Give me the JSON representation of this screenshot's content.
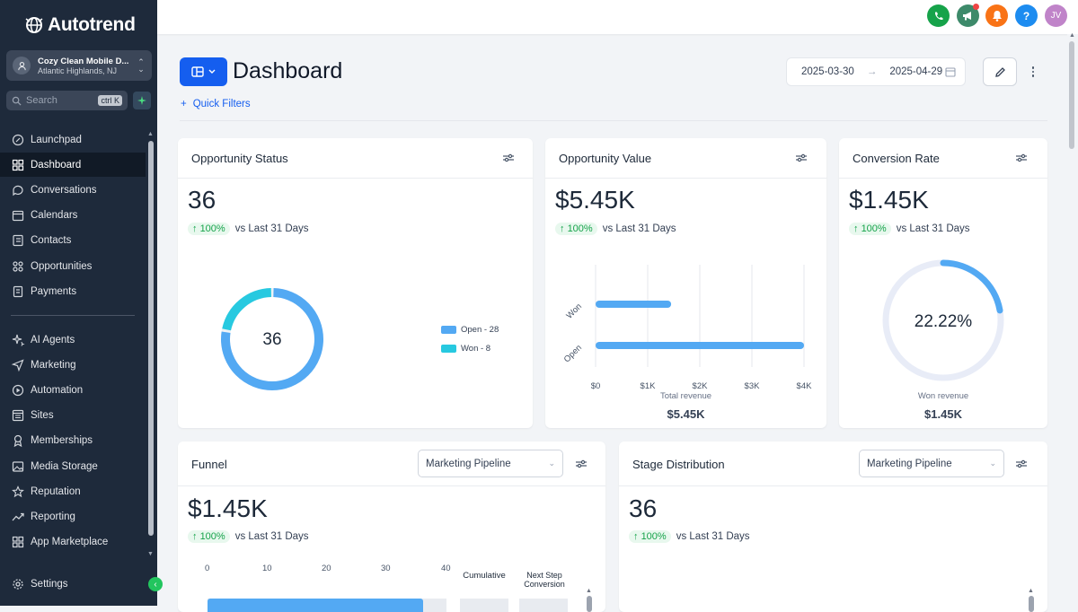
{
  "brand": {
    "name": "Autotrend"
  },
  "account": {
    "name": "Cozy Clean Mobile D...",
    "location": "Atlantic Highlands, NJ"
  },
  "search": {
    "placeholder": "Search",
    "shortcut": "ctrl K"
  },
  "nav": {
    "top": [
      {
        "label": "Launchpad",
        "icon": "rocket-icon"
      },
      {
        "label": "Dashboard",
        "icon": "grid-icon",
        "active": true
      },
      {
        "label": "Conversations",
        "icon": "chat-icon"
      },
      {
        "label": "Calendars",
        "icon": "calendar-icon"
      },
      {
        "label": "Contacts",
        "icon": "contacts-icon"
      },
      {
        "label": "Opportunities",
        "icon": "opportunities-icon"
      },
      {
        "label": "Payments",
        "icon": "payments-icon"
      }
    ],
    "bottom": [
      {
        "label": "AI Agents",
        "icon": "sparkles-icon"
      },
      {
        "label": "Marketing",
        "icon": "send-icon"
      },
      {
        "label": "Automation",
        "icon": "automation-icon"
      },
      {
        "label": "Sites",
        "icon": "sites-icon"
      },
      {
        "label": "Memberships",
        "icon": "membership-icon"
      },
      {
        "label": "Media Storage",
        "icon": "image-icon"
      },
      {
        "label": "Reputation",
        "icon": "star-icon"
      },
      {
        "label": "Reporting",
        "icon": "trend-icon"
      },
      {
        "label": "App Marketplace",
        "icon": "apps-icon"
      }
    ],
    "settings": "Settings"
  },
  "topbar": {
    "icons": [
      {
        "name": "phone-icon",
        "color": "#16a34a"
      },
      {
        "name": "megaphone-icon",
        "color": "#3d8a6a"
      },
      {
        "name": "bell-icon",
        "color": "#f97316"
      },
      {
        "name": "help-icon",
        "color": "#1d8cf0",
        "glyph": "?"
      },
      {
        "name": "avatar",
        "color": "#c084c9",
        "glyph": "JV"
      }
    ]
  },
  "header": {
    "title": "Dashboard",
    "date_from": "2025-03-30",
    "date_to": "2025-04-29",
    "quick_filters": "Quick Filters"
  },
  "cards": {
    "status": {
      "title": "Opportunity Status",
      "value": "36",
      "change": "100%",
      "period": "vs Last 31 Days",
      "center": "36"
    },
    "value": {
      "title": "Opportunity Value",
      "value": "$5.45K",
      "change": "100%",
      "period": "vs Last 31 Days",
      "xlabel": "Total revenue",
      "total": "$5.45K"
    },
    "conversion": {
      "title": "Conversion Rate",
      "value": "$1.45K",
      "change": "100%",
      "period": "vs Last 31 Days",
      "center": "22.22%",
      "label": "Won revenue",
      "total": "$1.45K"
    },
    "funnel": {
      "title": "Funnel",
      "pipeline": "Marketing Pipeline",
      "value": "$1.45K",
      "change": "100%",
      "period": "vs Last 31 Days",
      "ticks": [
        "0",
        "10",
        "20",
        "30",
        "40"
      ],
      "col_cumulative": "Cumulative",
      "col_next": "Next Step Conversion"
    },
    "stage": {
      "title": "Stage Distribution",
      "pipeline": "Marketing Pipeline",
      "value": "36",
      "change": "100%",
      "period": "vs Last 31 Days"
    }
  },
  "chart_data": [
    {
      "type": "pie",
      "title": "Opportunity Status",
      "categories": [
        "Open",
        "Won"
      ],
      "values": [
        28,
        8
      ],
      "legend": [
        "Open - 28",
        "Won - 8"
      ],
      "colors": [
        "#53a9f3",
        "#27c9e0"
      ]
    },
    {
      "type": "bar",
      "orientation": "horizontal",
      "title": "Opportunity Value",
      "categories": [
        "Won",
        "Open"
      ],
      "values": [
        1450,
        4000
      ],
      "xlim": [
        0,
        4000
      ],
      "xticks": [
        "$0",
        "$1K",
        "$2K",
        "$3K",
        "$4K"
      ],
      "xlabel": "Total revenue",
      "color": "#53a9f3"
    },
    {
      "type": "pie",
      "title": "Conversion Rate",
      "values": [
        22.22,
        77.78
      ],
      "center_label": "22.22%",
      "colors": [
        "#53a9f3",
        "#e8ecf7"
      ]
    }
  ]
}
